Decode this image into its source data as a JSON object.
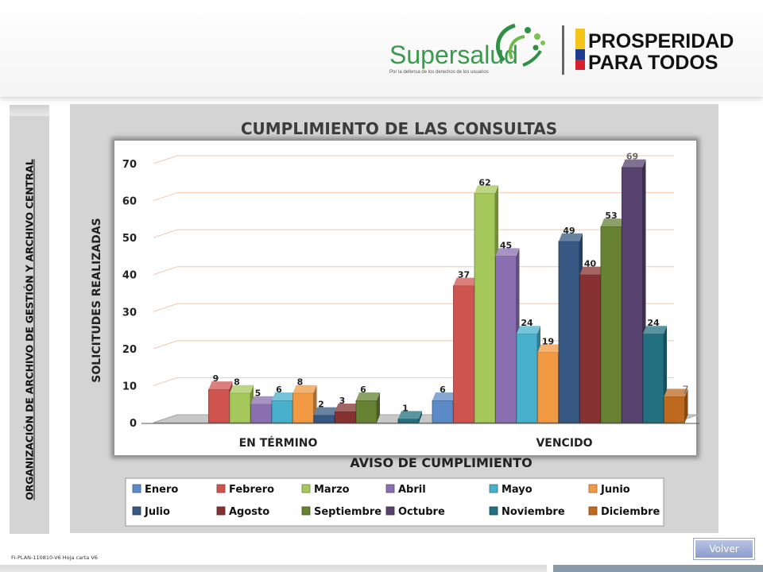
{
  "header": {
    "supersalud_name": "Supersalud",
    "supersalud_tagline": "Por la defensa de los derechos de los usuarios",
    "prosperidad_line1": "PROSPERIDAD",
    "prosperidad_line2": "PARA TODOS"
  },
  "sidebar": {
    "title": "ORGANIZACIÓN DE ARCHIVO DE GESTIÓN Y ARCHIVO CENTRAL"
  },
  "footer": {
    "code": "FI-PLAN-110810-V6 Hoja carta V6",
    "volver_label": "Volver"
  },
  "colors": {
    "Enero": "#5b8ac6",
    "Febrero": "#cf5450",
    "Marzo": "#a6c85a",
    "Abril": "#8a70b0",
    "Mayo": "#48b0cc",
    "Junio": "#f29a43",
    "Julio": "#365882",
    "Agosto": "#863232",
    "Septiembre": "#668232",
    "Octubre": "#56416f",
    "Noviembre": "#237080",
    "Diciembre": "#bd6a1e"
  },
  "chart_data": {
    "type": "bar",
    "title": "CUMPLIMIENTO DE LAS CONSULTAS",
    "xlabel": "AVISO DE CUMPLIMIENTO",
    "ylabel": "SOLICITUDES REALIZADAS",
    "categories": [
      "EN TÉRMINO",
      "VENCIDO"
    ],
    "ylim": [
      0,
      70
    ],
    "yticks": [
      "0",
      "10",
      "20",
      "30",
      "40",
      "50",
      "60",
      "70"
    ],
    "grid": true,
    "legend_position": "bottom",
    "series": [
      {
        "name": "Enero",
        "values": [
          null,
          6
        ],
        "labels": [
          "",
          "6"
        ]
      },
      {
        "name": "Febrero",
        "values": [
          9,
          37
        ],
        "labels": [
          "9",
          "37"
        ]
      },
      {
        "name": "Marzo",
        "values": [
          8,
          62
        ],
        "labels": [
          "8",
          "62"
        ]
      },
      {
        "name": "Abril",
        "values": [
          5,
          45
        ],
        "labels": [
          "5",
          "45"
        ]
      },
      {
        "name": "Mayo",
        "values": [
          6,
          24
        ],
        "labels": [
          "6",
          "24"
        ]
      },
      {
        "name": "Junio",
        "values": [
          8,
          19
        ],
        "labels": [
          "8",
          "19"
        ]
      },
      {
        "name": "Julio",
        "values": [
          2,
          49
        ],
        "labels": [
          "2",
          "49"
        ]
      },
      {
        "name": "Agosto",
        "values": [
          3,
          40
        ],
        "labels": [
          "3",
          "40"
        ]
      },
      {
        "name": "Septiembre",
        "values": [
          6,
          53
        ],
        "labels": [
          "6",
          "53"
        ]
      },
      {
        "name": "Octubre",
        "values": [
          null,
          69
        ],
        "labels": [
          "",
          "69"
        ]
      },
      {
        "name": "Noviembre",
        "values": [
          1,
          24
        ],
        "labels": [
          "1",
          "24"
        ]
      },
      {
        "name": "Diciembre",
        "values": [
          null,
          7
        ],
        "labels": [
          "",
          "7"
        ]
      }
    ]
  }
}
